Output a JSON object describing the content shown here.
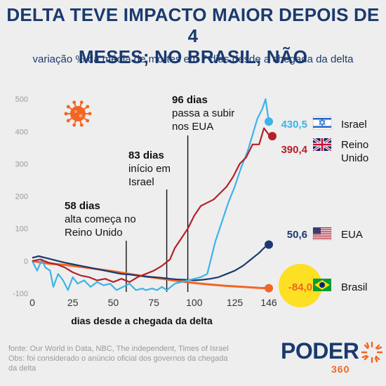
{
  "title_line1": "DELTA TEVE IMPACTO MAIOR DEPOIS DE 4",
  "title_line2": "MESES; NO BRASIL, NÃO",
  "subtitle": "variação % da média de mortes em 7 dias desde a chegada da delta",
  "footer_line1": "fonte: Our World in Data, NBC, The independent, Times of Israel",
  "footer_line2": "Obs: foi considerado o anúncio oficial dos governos da chegada",
  "footer_line3": "da delta",
  "logo_word": "PODER",
  "logo_number": "360",
  "colors": {
    "title": "#1a3a6e",
    "israel": "#3bb4e8",
    "reino_unido": "#b5202a",
    "eua": "#1a3a6e",
    "brasil": "#f26522",
    "highlight": "#fde023",
    "background": "#eeeeee"
  },
  "icon": "virus-icon",
  "chart_data": {
    "type": "line",
    "xlabel": "dias desde a chegada da delta",
    "ylabel": "",
    "x_ticks": [
      0,
      25,
      50,
      75,
      100,
      125,
      146
    ],
    "y_ticks": [
      -100,
      0,
      100,
      200,
      300,
      400,
      500
    ],
    "xlim": [
      0,
      146
    ],
    "ylim": [
      -100,
      520
    ],
    "series": [
      {
        "name": "Israel",
        "final_label": "430,5",
        "values": [
          [
            0,
            0
          ],
          [
            3,
            -30
          ],
          [
            6,
            5
          ],
          [
            8,
            -20
          ],
          [
            11,
            -30
          ],
          [
            13,
            -80
          ],
          [
            16,
            -40
          ],
          [
            19,
            -60
          ],
          [
            22,
            -90
          ],
          [
            25,
            -50
          ],
          [
            28,
            -70
          ],
          [
            32,
            -60
          ],
          [
            36,
            -80
          ],
          [
            40,
            -65
          ],
          [
            44,
            -75
          ],
          [
            48,
            -70
          ],
          [
            52,
            -90
          ],
          [
            56,
            -80
          ],
          [
            60,
            -70
          ],
          [
            64,
            -90
          ],
          [
            68,
            -85
          ],
          [
            70,
            -90
          ],
          [
            74,
            -85
          ],
          [
            77,
            -90
          ],
          [
            80,
            -80
          ],
          [
            83,
            -90
          ],
          [
            88,
            -70
          ],
          [
            92,
            -65
          ],
          [
            96,
            -60
          ],
          [
            100,
            -55
          ],
          [
            104,
            -50
          ],
          [
            108,
            -40
          ],
          [
            110,
            0
          ],
          [
            113,
            60
          ],
          [
            117,
            120
          ],
          [
            121,
            180
          ],
          [
            125,
            230
          ],
          [
            129,
            290
          ],
          [
            133,
            340
          ],
          [
            136,
            390
          ],
          [
            139,
            440
          ],
          [
            142,
            470
          ],
          [
            144,
            500
          ],
          [
            146,
            430.5
          ]
        ]
      },
      {
        "name": "Reino Unido",
        "final_label": "390,4",
        "values": [
          [
            0,
            0
          ],
          [
            5,
            5
          ],
          [
            10,
            -5
          ],
          [
            15,
            -10
          ],
          [
            20,
            -20
          ],
          [
            25,
            -35
          ],
          [
            30,
            -45
          ],
          [
            35,
            -50
          ],
          [
            40,
            -60
          ],
          [
            45,
            -55
          ],
          [
            50,
            -65
          ],
          [
            55,
            -55
          ],
          [
            60,
            -65
          ],
          [
            65,
            -50
          ],
          [
            70,
            -40
          ],
          [
            75,
            -30
          ],
          [
            80,
            -15
          ],
          [
            85,
            5
          ],
          [
            88,
            40
          ],
          [
            92,
            70
          ],
          [
            96,
            100
          ],
          [
            100,
            140
          ],
          [
            104,
            170
          ],
          [
            108,
            180
          ],
          [
            112,
            190
          ],
          [
            116,
            210
          ],
          [
            120,
            230
          ],
          [
            124,
            260
          ],
          [
            128,
            300
          ],
          [
            132,
            320
          ],
          [
            136,
            360
          ],
          [
            140,
            360
          ],
          [
            143,
            410
          ],
          [
            146,
            390.4
          ]
        ]
      },
      {
        "name": "EUA",
        "final_label": "50,6",
        "values": [
          [
            0,
            10
          ],
          [
            4,
            15
          ],
          [
            8,
            10
          ],
          [
            12,
            5
          ],
          [
            16,
            0
          ],
          [
            20,
            -5
          ],
          [
            25,
            -10
          ],
          [
            30,
            -15
          ],
          [
            35,
            -20
          ],
          [
            40,
            -25
          ],
          [
            45,
            -30
          ],
          [
            50,
            -35
          ],
          [
            55,
            -40
          ],
          [
            60,
            -42
          ],
          [
            65,
            -45
          ],
          [
            70,
            -48
          ],
          [
            75,
            -50
          ],
          [
            80,
            -52
          ],
          [
            85,
            -55
          ],
          [
            90,
            -57
          ],
          [
            95,
            -58
          ],
          [
            100,
            -60
          ],
          [
            105,
            -58
          ],
          [
            110,
            -55
          ],
          [
            115,
            -50
          ],
          [
            120,
            -40
          ],
          [
            125,
            -30
          ],
          [
            130,
            -15
          ],
          [
            135,
            5
          ],
          [
            140,
            25
          ],
          [
            143,
            40
          ],
          [
            146,
            50.6
          ]
        ]
      },
      {
        "name": "Brasil",
        "final_label": "-84,0",
        "values": [
          [
            0,
            0
          ],
          [
            6,
            -5
          ],
          [
            10,
            -8
          ],
          [
            20,
            -12
          ],
          [
            30,
            -18
          ],
          [
            40,
            -25
          ],
          [
            50,
            -32
          ],
          [
            60,
            -40
          ],
          [
            70,
            -48
          ],
          [
            80,
            -55
          ],
          [
            90,
            -62
          ],
          [
            100,
            -68
          ],
          [
            110,
            -73
          ],
          [
            120,
            -77
          ],
          [
            130,
            -80
          ],
          [
            140,
            -83
          ],
          [
            146,
            -84.0
          ]
        ]
      }
    ],
    "annotations": [
      {
        "x": 58,
        "lines": [
          "58 dias",
          "alta começa no",
          "Reino Unido"
        ]
      },
      {
        "x": 83,
        "lines": [
          "83 dias",
          "início em",
          "Israel"
        ]
      },
      {
        "x": 96,
        "lines": [
          "96 dias",
          "passa a subir",
          "nos EUA"
        ]
      }
    ]
  }
}
